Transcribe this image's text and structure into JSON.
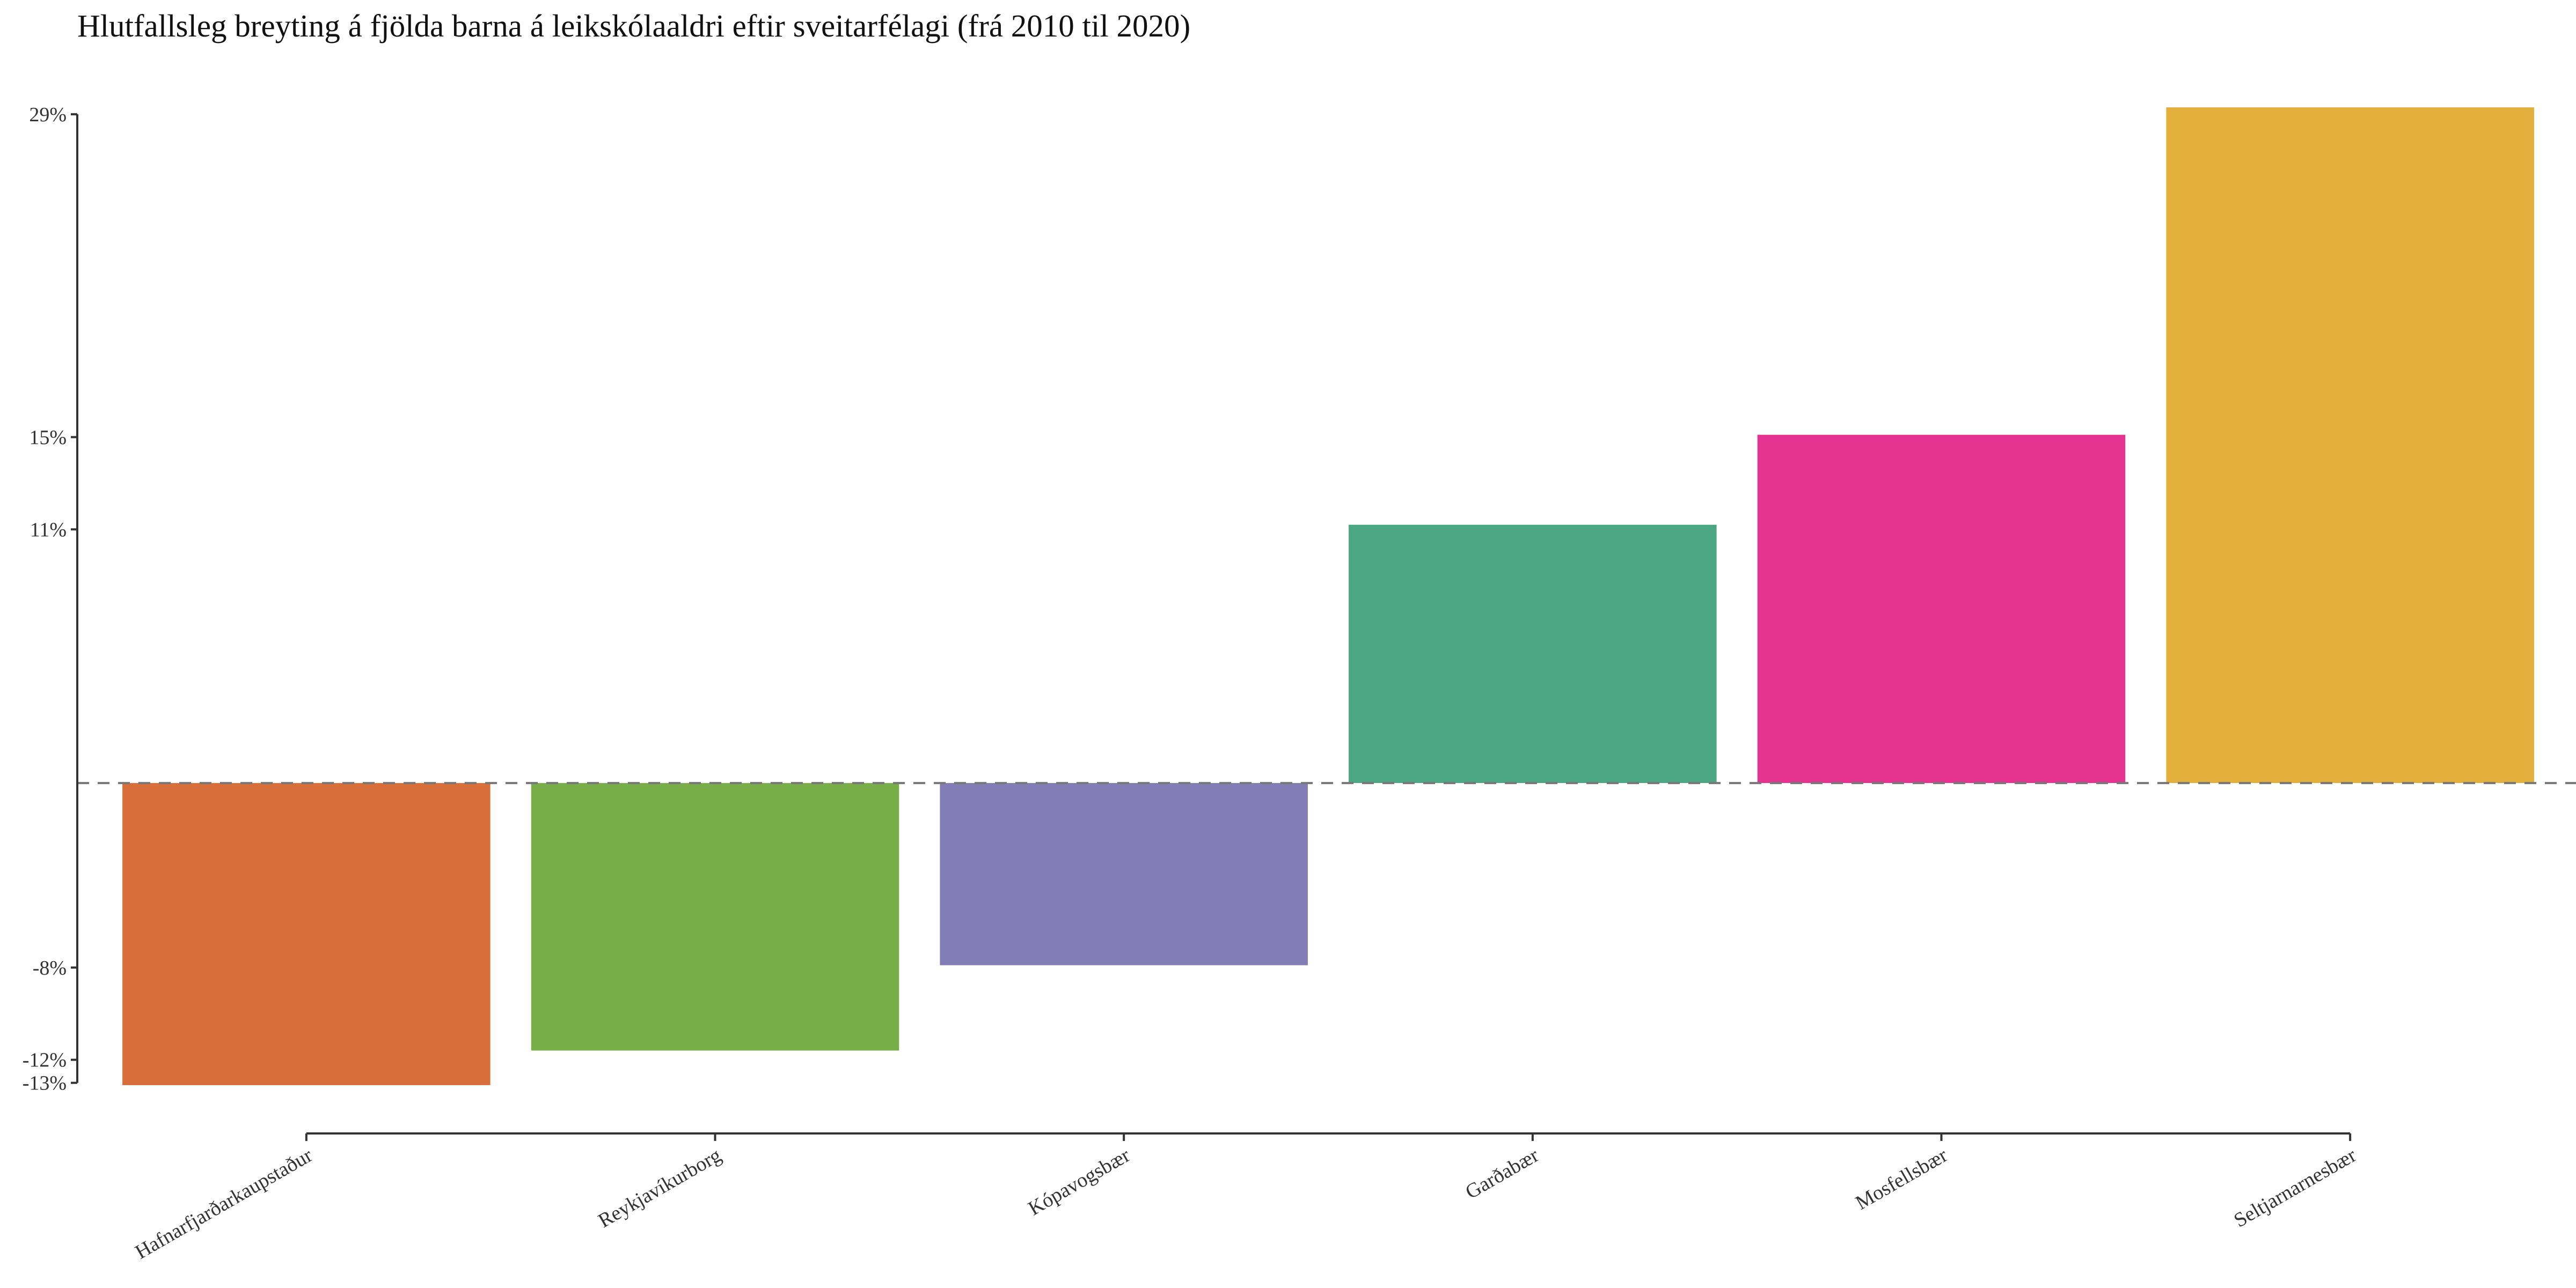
{
  "chart_data": {
    "type": "bar",
    "title": "Hlutfallsleg breyting á fjölda barna á leikskólaaldri eftir sveitarfélagi (frá 2010 til 2020)",
    "xlabel": "",
    "ylabel": "",
    "categories": [
      "Hafnarfjarðarkaupstaður",
      "Reykjavíkurborg",
      "Kópavogsbær",
      "Garðabær",
      "Mosfellsbær",
      "Seltjarnarnesbær"
    ],
    "values": [
      -13.1,
      -11.6,
      -7.9,
      11.2,
      15.1,
      29.3
    ],
    "colors": [
      "#D86E3A",
      "#78AE48",
      "#837CB5",
      "#4AA683",
      "#E33290",
      "#E3AF3C"
    ],
    "ylim": [
      -13.1,
      29.3
    ],
    "yticks": [
      29,
      15,
      11,
      -8,
      -12,
      -13
    ],
    "ytick_labels": [
      "29%",
      "15%",
      "11%",
      "-8%",
      "-12%",
      "-13%"
    ],
    "zero_line": "dashed",
    "grid": false,
    "legend": "none"
  }
}
